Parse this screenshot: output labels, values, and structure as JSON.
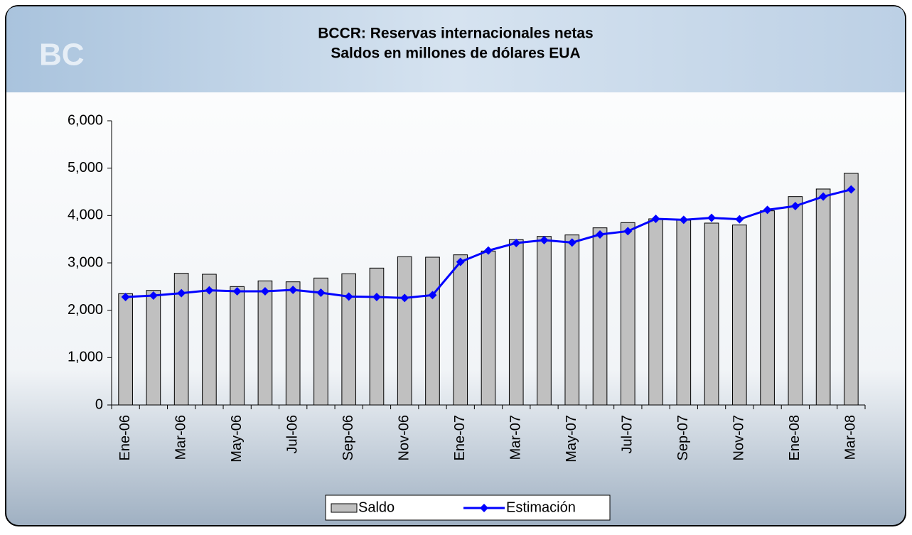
{
  "chart_data": {
    "type": "bar-line",
    "title": "BCCR: Reservas internacionales netas",
    "subtitle": "Saldos en millones de dólares EUA",
    "categories": [
      "Ene-06",
      null,
      "Mar-06",
      null,
      "May-06",
      null,
      "Jul-06",
      null,
      "Sep-06",
      null,
      "Nov-06",
      null,
      "Ene-07",
      null,
      "Mar-07",
      null,
      "May-07",
      null,
      "Jul-07",
      null,
      "Sep-07",
      null,
      "Nov-07",
      null,
      "Ene-08",
      null,
      "Mar-08"
    ],
    "series": [
      {
        "name": "Saldo",
        "type": "bar",
        "color": "#c0c0c0",
        "values": [
          2350,
          2420,
          2780,
          2760,
          2500,
          2620,
          2600,
          2680,
          2770,
          2890,
          3130,
          3120,
          3170,
          3250,
          3490,
          3560,
          3590,
          3740,
          3850,
          3930,
          3900,
          3840,
          3800,
          4100,
          4400,
          4560,
          4890
        ]
      },
      {
        "name": "Estimación",
        "type": "line",
        "color": "#0000ff",
        "values": [
          2280,
          2310,
          2360,
          2420,
          2400,
          2400,
          2430,
          2370,
          2290,
          2280,
          2260,
          2320,
          3020,
          3260,
          3420,
          3480,
          3430,
          3600,
          3670,
          3930,
          3910,
          3950,
          3920,
          4120,
          4200,
          4400,
          4550
        ]
      }
    ],
    "ylim": [
      0,
      6000
    ],
    "yticks": [
      0,
      {
        "value": 1000,
        "label": "1,000"
      },
      {
        "value": 2000,
        "label": "2,000"
      },
      {
        "value": 3000,
        "label": "3,000"
      },
      {
        "value": 4000,
        "label": "4,000"
      },
      {
        "value": 5000,
        "label": "5,000"
      },
      {
        "value": 6000,
        "label": "6,000"
      }
    ],
    "grid": false,
    "legend": "bottom"
  }
}
